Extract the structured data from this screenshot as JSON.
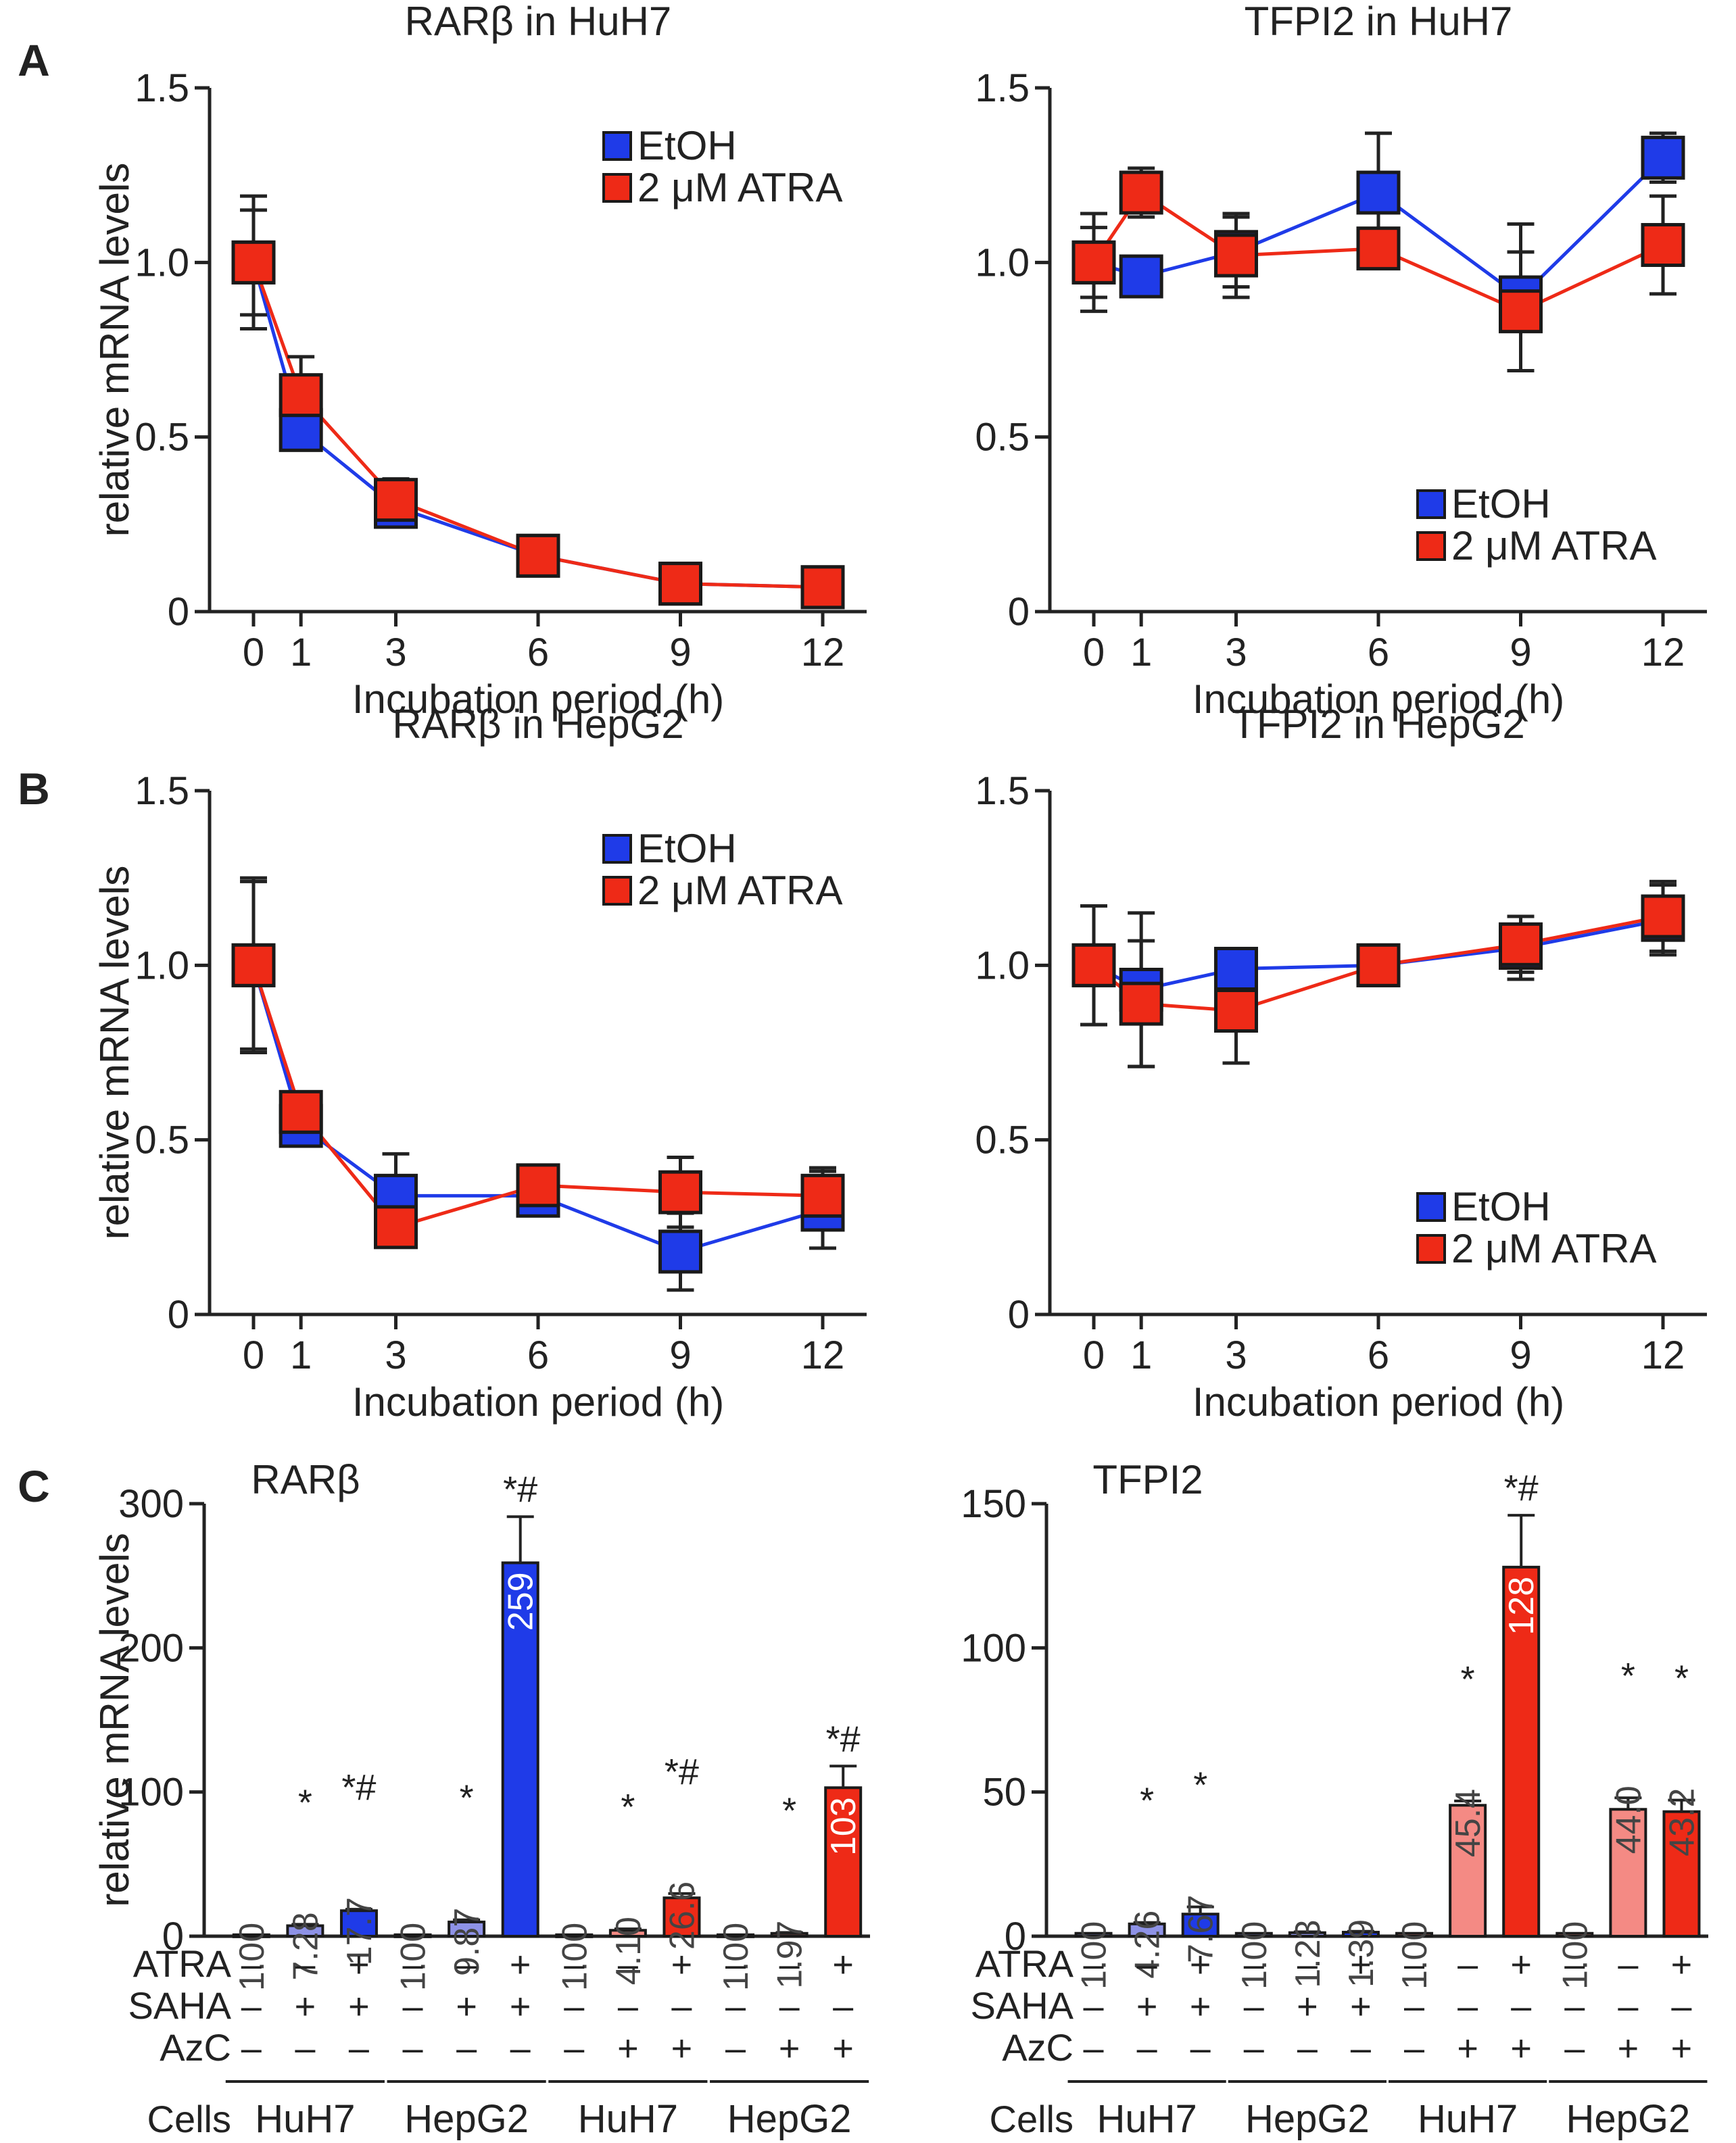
{
  "colors": {
    "etoh": "#1f3be8",
    "atra": "#ee2a17",
    "atra_light": "#f48a84",
    "blue_light": "#8e92e6",
    "axis": "#222222",
    "bar_label_dark": "#444444",
    "bar_label_light": "#ffffff"
  },
  "panel_letters": [
    "A",
    "B",
    "C"
  ],
  "chart_data": [
    {
      "id": "A1",
      "type": "line",
      "title": "RARβ in HuH7",
      "xlabel": "Incubation period (h)",
      "ylabel": "relative mRNA levels",
      "x": [
        0,
        1,
        3,
        6,
        9,
        12
      ],
      "xticks": [
        "0",
        "1",
        "3",
        "6",
        "9",
        "12"
      ],
      "yticks": [
        "0",
        "0.5",
        "1.0",
        "1.5"
      ],
      "ylim": [
        0,
        1.5
      ],
      "legend": [
        "EtOH",
        "2 μM ATRA"
      ],
      "legend_position": "top-right",
      "series": [
        {
          "name": "EtOH",
          "values": [
            1.0,
            0.52,
            0.3,
            0.16,
            0.08,
            0.07
          ],
          "err": [
            0.15,
            0.05,
            0.05,
            0.02,
            0.02,
            0.01
          ]
        },
        {
          "name": "2 μM ATRA",
          "values": [
            1.0,
            0.62,
            0.32,
            0.16,
            0.08,
            0.07
          ],
          "err": [
            0.19,
            0.11,
            0.06,
            0.02,
            0.02,
            0.02
          ]
        }
      ]
    },
    {
      "id": "A2",
      "type": "line",
      "title": "TFPI2 in HuH7",
      "xlabel": "Incubation period (h)",
      "ylabel": "relative mRNA levels",
      "x": [
        0,
        1,
        3,
        6,
        9,
        12
      ],
      "xticks": [
        "0",
        "1",
        "3",
        "6",
        "9",
        "12"
      ],
      "yticks": [
        "0",
        "0.5",
        "1.0",
        "1.5"
      ],
      "ylim": [
        0,
        1.5
      ],
      "legend": [
        "EtOH",
        "2 μM ATRA"
      ],
      "legend_position": "bottom-right",
      "series": [
        {
          "name": "EtOH",
          "values": [
            1.0,
            0.96,
            1.03,
            1.2,
            0.9,
            1.3
          ],
          "err": [
            0.1,
            0.03,
            0.1,
            0.17,
            0.21,
            0.07
          ]
        },
        {
          "name": "2 μM ATRA",
          "values": [
            1.0,
            1.2,
            1.02,
            1.04,
            0.86,
            1.05
          ],
          "err": [
            0.14,
            0.07,
            0.12,
            0.04,
            0.17,
            0.14
          ]
        }
      ]
    },
    {
      "id": "B1",
      "type": "line",
      "title": "RARβ in HepG2",
      "xlabel": "Incubation period (h)",
      "ylabel": "relative mRNA levels",
      "x": [
        0,
        1,
        3,
        6,
        9,
        12
      ],
      "xticks": [
        "0",
        "1",
        "3",
        "6",
        "9",
        "12"
      ],
      "yticks": [
        "0",
        "0.5",
        "1.0",
        "1.5"
      ],
      "ylim": [
        0,
        1.5
      ],
      "legend": [
        "EtOH",
        "2 μM ATRA"
      ],
      "legend_position": "top-right",
      "series": [
        {
          "name": "EtOH",
          "values": [
            1.0,
            0.54,
            0.34,
            0.34,
            0.18,
            0.3
          ],
          "err": [
            0.25,
            0.04,
            0.12,
            0.03,
            0.11,
            0.11
          ]
        },
        {
          "name": "2 μM ATRA",
          "values": [
            1.0,
            0.58,
            0.25,
            0.37,
            0.35,
            0.34
          ],
          "err": [
            0.24,
            0.05,
            0.04,
            0.03,
            0.1,
            0.08
          ]
        }
      ]
    },
    {
      "id": "B2",
      "type": "line",
      "title": "TFPI2 in HepG2",
      "xlabel": "Incubation period (h)",
      "ylabel": "relative mRNA levels",
      "x": [
        0,
        1,
        3,
        6,
        9,
        12
      ],
      "xticks": [
        "0",
        "1",
        "3",
        "6",
        "9",
        "12"
      ],
      "yticks": [
        "0",
        "0.5",
        "1.0",
        "1.5"
      ],
      "ylim": [
        0,
        1.5
      ],
      "legend": [
        "EtOH",
        "2 μM ATRA"
      ],
      "legend_position": "bottom-right",
      "series": [
        {
          "name": "EtOH",
          "values": [
            1.0,
            0.93,
            0.99,
            1.0,
            1.05,
            1.13
          ],
          "err": [
            0.17,
            0.22,
            0.03,
            0.03,
            0.09,
            0.1
          ]
        },
        {
          "name": "2 μM ATRA",
          "values": [
            1.0,
            0.89,
            0.87,
            1.0,
            1.06,
            1.14
          ],
          "err": [
            0.17,
            0.18,
            0.15,
            0.02,
            0.08,
            0.1
          ]
        }
      ]
    },
    {
      "id": "C1",
      "type": "bar",
      "title": "RARβ",
      "ylabel": "relative mRNA levels",
      "yticks": [
        "0",
        "100",
        "200",
        "300"
      ],
      "ylim": [
        0,
        300
      ],
      "values": [
        1.0,
        7.28,
        17.7,
        1.0,
        9.87,
        259,
        1.0,
        4.1,
        26.6,
        1.0,
        1.97,
        103
      ],
      "err": [
        0,
        1,
        1,
        0,
        1.5,
        32,
        0,
        1,
        3,
        0,
        0.6,
        15
      ],
      "value_labels": [
        "1.00",
        "7.28",
        "17.7",
        "1.00",
        "9.87",
        "259",
        "1.00",
        "4.10",
        "26.6",
        "1.00",
        "1.97",
        "103"
      ],
      "significance": [
        "",
        "*",
        "*#",
        "",
        "*",
        "*#",
        "",
        "*",
        "*#",
        "",
        "*",
        "*#"
      ],
      "bar_colors": [
        "blue_light",
        "blue_light",
        "etoh",
        "blue_light",
        "blue_light",
        "etoh",
        "atra_light",
        "atra_light",
        "atra",
        "atra_light",
        "atra_light",
        "atra"
      ],
      "conditions": {
        "ATRA": [
          "–",
          "–",
          "+",
          "–",
          "–",
          "+",
          "–",
          "–",
          "+",
          "–",
          "–",
          "+"
        ],
        "SAHA": [
          "–",
          "+",
          "+",
          "–",
          "+",
          "+",
          "–",
          "–",
          "–",
          "–",
          "–",
          "–"
        ],
        "AzC": [
          "–",
          "–",
          "–",
          "–",
          "–",
          "–",
          "–",
          "+",
          "+",
          "–",
          "+",
          "+"
        ]
      },
      "condition_labels": [
        "ATRA",
        "SAHA",
        "AzC"
      ],
      "cells_label": "Cells",
      "cell_groups": [
        "HuH7",
        "HepG2",
        "HuH7",
        "HepG2"
      ]
    },
    {
      "id": "C2",
      "type": "bar",
      "title": "TFPI2",
      "ylabel": "relative mRNA levels",
      "yticks": [
        "0",
        "50",
        "100",
        "150"
      ],
      "ylim": [
        0,
        150
      ],
      "values": [
        1.0,
        4.26,
        7.67,
        1.0,
        1.23,
        1.39,
        1.0,
        45.4,
        128,
        1.0,
        44.0,
        43.2
      ],
      "err": [
        0,
        0.5,
        2.5,
        0,
        0.3,
        0.3,
        0,
        1.5,
        18,
        0,
        4,
        4
      ],
      "value_labels": [
        "1.00",
        "4.26",
        "7.67",
        "1.00",
        "1.23",
        "1.39",
        "1.00",
        "45.4",
        "128",
        "1.00",
        "44.0",
        "43.2"
      ],
      "significance": [
        "",
        "*",
        "*",
        "",
        "",
        "",
        "",
        "*",
        "*#",
        "",
        "*",
        "*"
      ],
      "bar_colors": [
        "blue_light",
        "blue_light",
        "etoh",
        "blue_light",
        "blue_light",
        "etoh",
        "atra_light",
        "atra_light",
        "atra",
        "atra_light",
        "atra_light",
        "atra"
      ],
      "conditions": {
        "ATRA": [
          "–",
          "–",
          "+",
          "–",
          "–",
          "+",
          "–",
          "–",
          "+",
          "–",
          "–",
          "+"
        ],
        "SAHA": [
          "–",
          "+",
          "+",
          "–",
          "+",
          "+",
          "–",
          "–",
          "–",
          "–",
          "–",
          "–"
        ],
        "AzC": [
          "–",
          "–",
          "–",
          "–",
          "–",
          "–",
          "–",
          "+",
          "+",
          "–",
          "+",
          "+"
        ]
      },
      "condition_labels": [
        "ATRA",
        "SAHA",
        "AzC"
      ],
      "cells_label": "Cells",
      "cell_groups": [
        "HuH7",
        "HepG2",
        "HuH7",
        "HepG2"
      ]
    }
  ]
}
